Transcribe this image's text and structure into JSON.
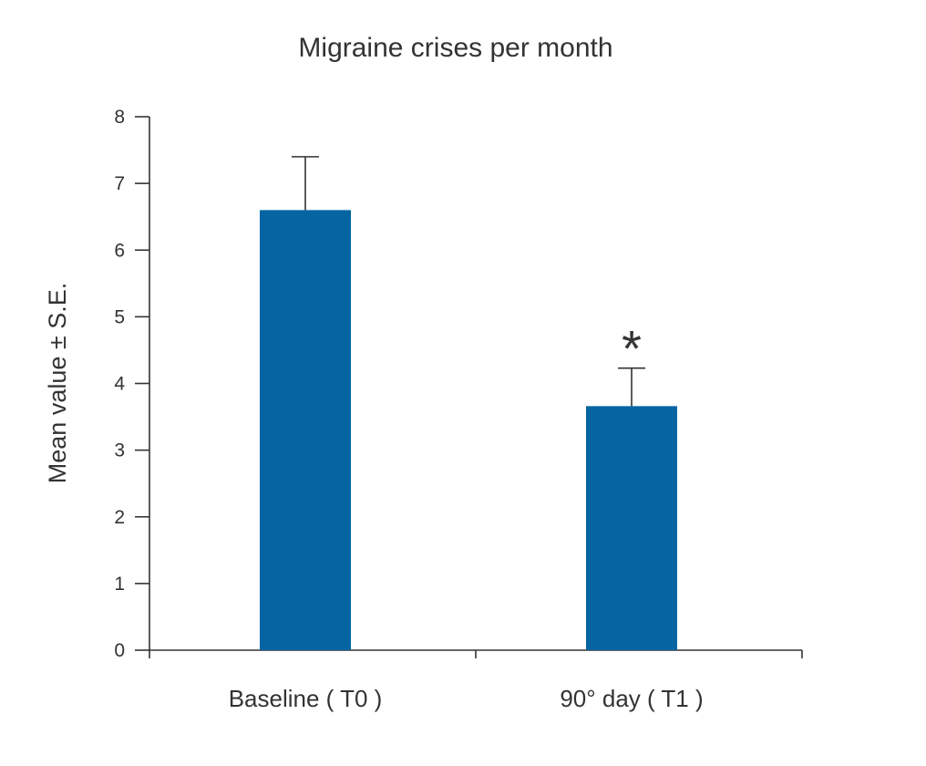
{
  "chart_data": {
    "type": "bar",
    "title": "Migraine crises per month",
    "xlabel": "",
    "ylabel": "Mean value ± S.E.",
    "categories": [
      "Baseline ( T0 )",
      "90° day ( T1 )"
    ],
    "values": [
      6.6,
      3.66
    ],
    "error": [
      0.8,
      0.57
    ],
    "annotations": [
      "",
      "*"
    ],
    "ylim": [
      0,
      8
    ],
    "yticks": [
      "0",
      "1",
      "2",
      "3",
      "4",
      "5",
      "6",
      "7",
      "8"
    ],
    "grid": false,
    "bar_color": "#0565a3"
  }
}
